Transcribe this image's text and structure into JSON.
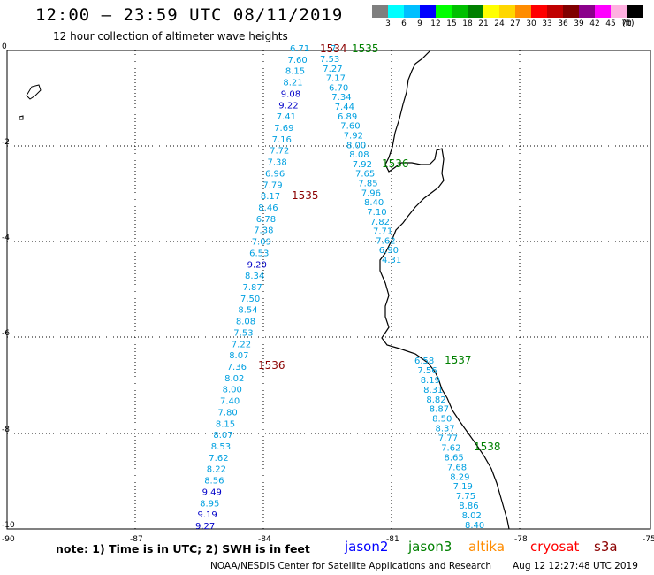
{
  "header": {
    "title": "12:00 – 23:59 UTC 08/11/2019",
    "subtitle": "12 hour collection of altimeter wave heights"
  },
  "legend": {
    "unit": "(ft)",
    "labels": [
      "3",
      "6",
      "9",
      "12",
      "15",
      "18",
      "21",
      "24",
      "27",
      "30",
      "33",
      "36",
      "39",
      "42",
      "45",
      "70"
    ],
    "colors": [
      "#7f7f7f",
      "#00ffff",
      "#00bfff",
      "#0000ff",
      "#00ff00",
      "#00c000",
      "#008000",
      "#ffff00",
      "#ffd700",
      "#ff8c00",
      "#ff0000",
      "#c00000",
      "#800000",
      "#8b008b",
      "#ff00ff",
      "#ffb0e0",
      "#000000"
    ]
  },
  "axes": {
    "x_ticks": [
      "-90",
      "-87",
      "-84",
      "-81",
      "-78",
      "-75"
    ],
    "y_ticks": [
      "0",
      "-2",
      "-4",
      "-6",
      "-8",
      "-10"
    ]
  },
  "passes": [
    {
      "label": "1534",
      "color": "#8b0000"
    },
    {
      "label": "1535",
      "color": "#008000"
    },
    {
      "label": "1535",
      "color": "#8b0000"
    },
    {
      "label": "1536",
      "color": "#008000"
    },
    {
      "label": "1536",
      "color": "#8b0000"
    },
    {
      "label": "1537",
      "color": "#008000"
    },
    {
      "label": "1538",
      "color": "#008000"
    }
  ],
  "tracks": {
    "west": {
      "values": [
        "6.71",
        "7.60",
        "8.15",
        "8.21",
        "9.08",
        "9.22",
        "7.41",
        "7.69",
        "7.16",
        "7.72",
        "7.38",
        "6.96",
        "7.79",
        "8.17",
        "8.46",
        "6.78",
        "7.38",
        "7.09",
        "6.53",
        "9.20",
        "8.34",
        "7.87",
        "7.50",
        "8.54",
        "8.08",
        "7.53",
        "7.22",
        "8.07",
        "7.36",
        "8.02",
        "8.00",
        "7.40",
        "7.80",
        "8.15",
        "8.07",
        "8.53",
        "7.62",
        "8.22",
        "8.56",
        "9.49",
        "8.95",
        "9.19",
        "9.27"
      ],
      "colors": [
        "c",
        "c",
        "c",
        "c",
        "b",
        "b",
        "c",
        "c",
        "c",
        "c",
        "c",
        "c",
        "c",
        "c",
        "c",
        "c",
        "c",
        "c",
        "c",
        "b",
        "c",
        "c",
        "c",
        "c",
        "c",
        "c",
        "c",
        "c",
        "c",
        "c",
        "c",
        "c",
        "c",
        "c",
        "c",
        "c",
        "c",
        "c",
        "c",
        "b",
        "c",
        "b",
        "b"
      ]
    },
    "middle": {
      "values": [
        "7.53",
        "7.27",
        "7.17",
        "6.70",
        "7.34",
        "7.44",
        "6.89",
        "7.60",
        "7.92",
        "8.00",
        "8.08",
        "7.92",
        "7.65",
        "7.85",
        "7.96",
        "8.40",
        "7.10",
        "7.82",
        "7.71",
        "7.62",
        "6.90",
        "4.31"
      ]
    },
    "south": {
      "values": [
        "6.58",
        "7.56",
        "8.19",
        "8.31",
        "8.82",
        "8.87",
        "8.50",
        "8.37",
        "7.77",
        "7.62",
        "8.65",
        "7.68",
        "8.29",
        "7.19",
        "7.75",
        "8.86",
        "8.02",
        "8.40"
      ]
    },
    "top_extra": "7"
  },
  "footer": {
    "note": "note:  1) Time is in UTC;  2) SWH is in feet",
    "satellites": [
      {
        "name": "jason2",
        "color": "#0000ff"
      },
      {
        "name": "jason3",
        "color": "#008000"
      },
      {
        "name": "altika",
        "color": "#ff8c00"
      },
      {
        "name": "cryosat",
        "color": "#ff0000"
      },
      {
        "name": "s3a",
        "color": "#8b0000"
      }
    ],
    "credit": "NOAA/NESDIS Center for Satellite Applications and Research",
    "timestamp": "Aug 12 12:27:48 UTC 2019"
  }
}
